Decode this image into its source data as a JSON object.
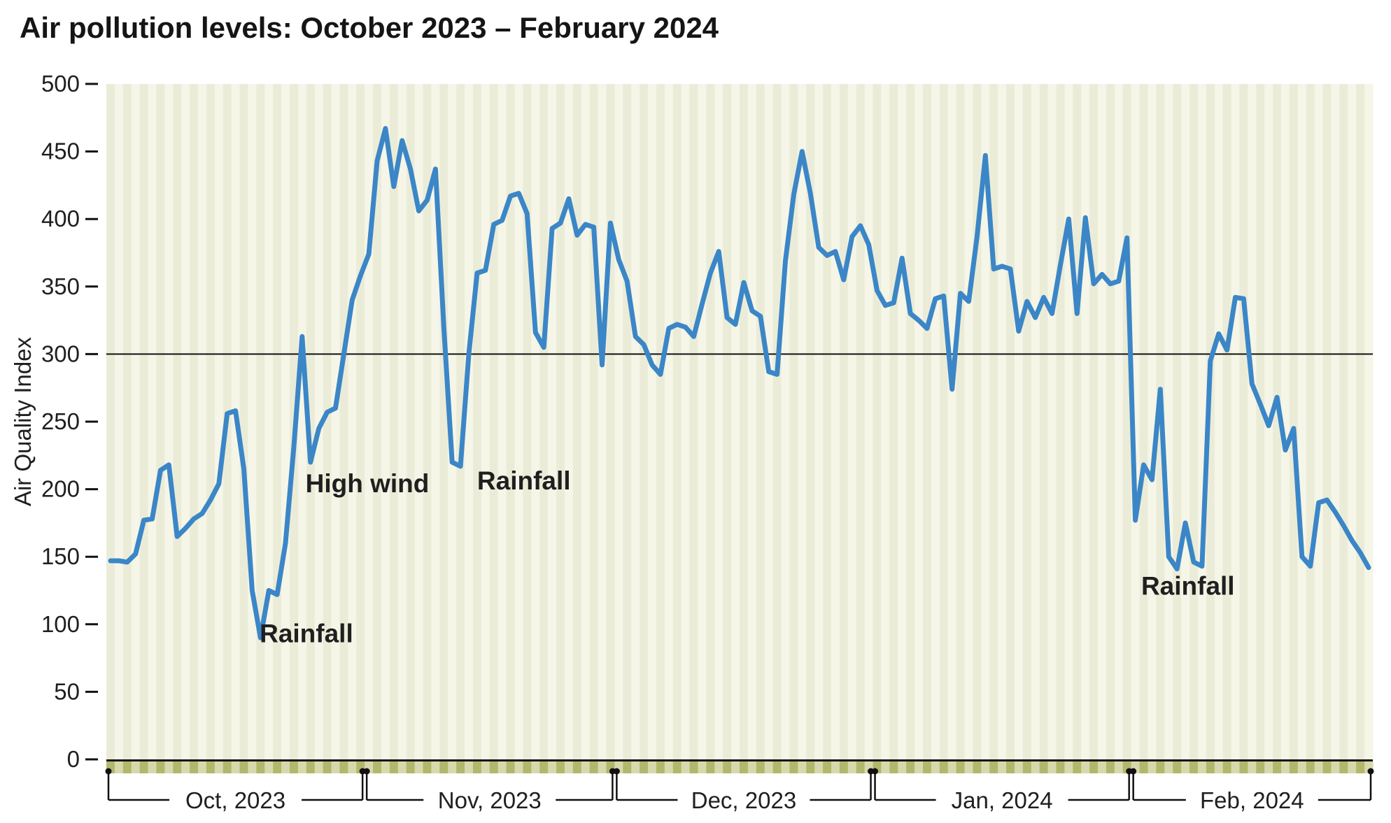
{
  "title": "Air pollution levels: October 2023 – February 2024",
  "y_axis": {
    "label": "Air Quality Index",
    "ticks": [
      0,
      50,
      100,
      150,
      200,
      250,
      300,
      350,
      400,
      450,
      500
    ],
    "max": 500,
    "reference_line": 300
  },
  "annotations": [
    {
      "text": "High wind",
      "day": 23.9,
      "value": 204
    },
    {
      "text": "Rainfall",
      "day": 18.4,
      "value": 93
    },
    {
      "text": "Rainfall",
      "day": 44.5,
      "value": 206
    },
    {
      "text": "Rainfall",
      "day": 124.2,
      "value": 128
    }
  ],
  "colors": {
    "line": "#3b86c7",
    "stripe_dark": "#ebecd8",
    "stripe_light": "#f5f6e8",
    "band_dark": "#b3b76c",
    "band_light": "#d7d9ac",
    "axis": "#111111",
    "text": "#1f1f1f"
  },
  "chart_data": {
    "type": "line",
    "title": "Air pollution levels: October 2023 – February 2024",
    "ylabel": "Air Quality Index",
    "ylim": [
      0,
      500
    ],
    "reference_line": 300,
    "grid": false,
    "months": [
      {
        "label": "Oct, 2023",
        "days": 31,
        "values": [
          147,
          147,
          146,
          152,
          177,
          178,
          214,
          218,
          165,
          171,
          178,
          182,
          192,
          204,
          256,
          258,
          215,
          125,
          90,
          125,
          122,
          160,
          231,
          313,
          220,
          245,
          257,
          260,
          300,
          340,
          358
        ]
      },
      {
        "label": "Nov, 2023",
        "days": 30,
        "values": [
          374,
          443,
          467,
          424,
          458,
          437,
          406,
          414,
          437,
          320,
          220,
          217,
          300,
          360,
          362,
          396,
          399,
          417,
          419,
          404,
          316,
          305,
          393,
          397,
          415,
          388,
          396,
          394,
          292,
          397
        ]
      },
      {
        "label": "Dec, 2023",
        "days": 31,
        "values": [
          370,
          354,
          313,
          307,
          292,
          285,
          319,
          322,
          320,
          313,
          337,
          360,
          376,
          327,
          322,
          353,
          332,
          328,
          287,
          285,
          369,
          418,
          450,
          419,
          379,
          373,
          376,
          355,
          387,
          395,
          381
        ]
      },
      {
        "label": "Jan, 2024",
        "days": 31,
        "values": [
          347,
          336,
          338,
          371,
          330,
          325,
          319,
          341,
          343,
          274,
          345,
          339,
          387,
          447,
          363,
          365,
          363,
          317,
          339,
          327,
          342,
          330,
          366,
          400,
          330,
          401,
          352,
          359,
          352,
          354,
          386
        ]
      },
      {
        "label": "Feb, 2024",
        "days": 29,
        "values": [
          177,
          218,
          207,
          274,
          150,
          141,
          175,
          146,
          143,
          295,
          315,
          303,
          342,
          341,
          278,
          263,
          247,
          268,
          229,
          245,
          150,
          143,
          190,
          192,
          183,
          173,
          162,
          153,
          142
        ]
      }
    ]
  }
}
